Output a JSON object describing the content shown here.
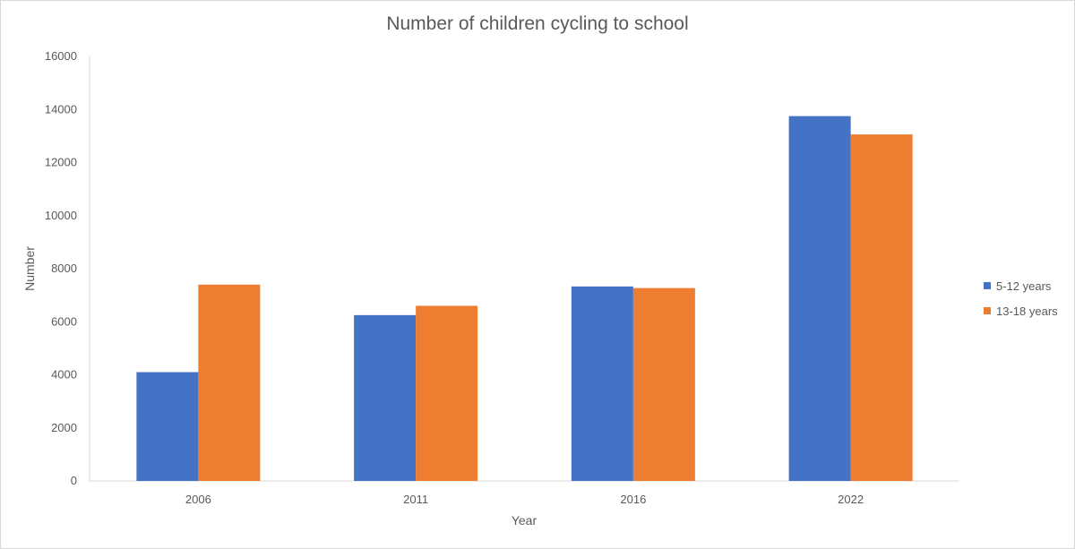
{
  "chart_data": {
    "type": "bar",
    "title": "Number of children cycling to school",
    "xlabel": "Year",
    "ylabel": "Number",
    "categories": [
      "2006",
      "2011",
      "2016",
      "2022"
    ],
    "series": [
      {
        "name": "5-12 years",
        "color": "#4472C4",
        "values": [
          4100,
          6250,
          7330,
          13750
        ]
      },
      {
        "name": "13-18 years",
        "color": "#ED7D31",
        "values": [
          7400,
          6600,
          7270,
          13060
        ]
      }
    ],
    "ylim": [
      0,
      16000
    ],
    "yticks": [
      "0",
      "2000",
      "4000",
      "6000",
      "8000",
      "10000",
      "12000",
      "14000",
      "16000"
    ],
    "grid": false,
    "legend_position": "right"
  }
}
